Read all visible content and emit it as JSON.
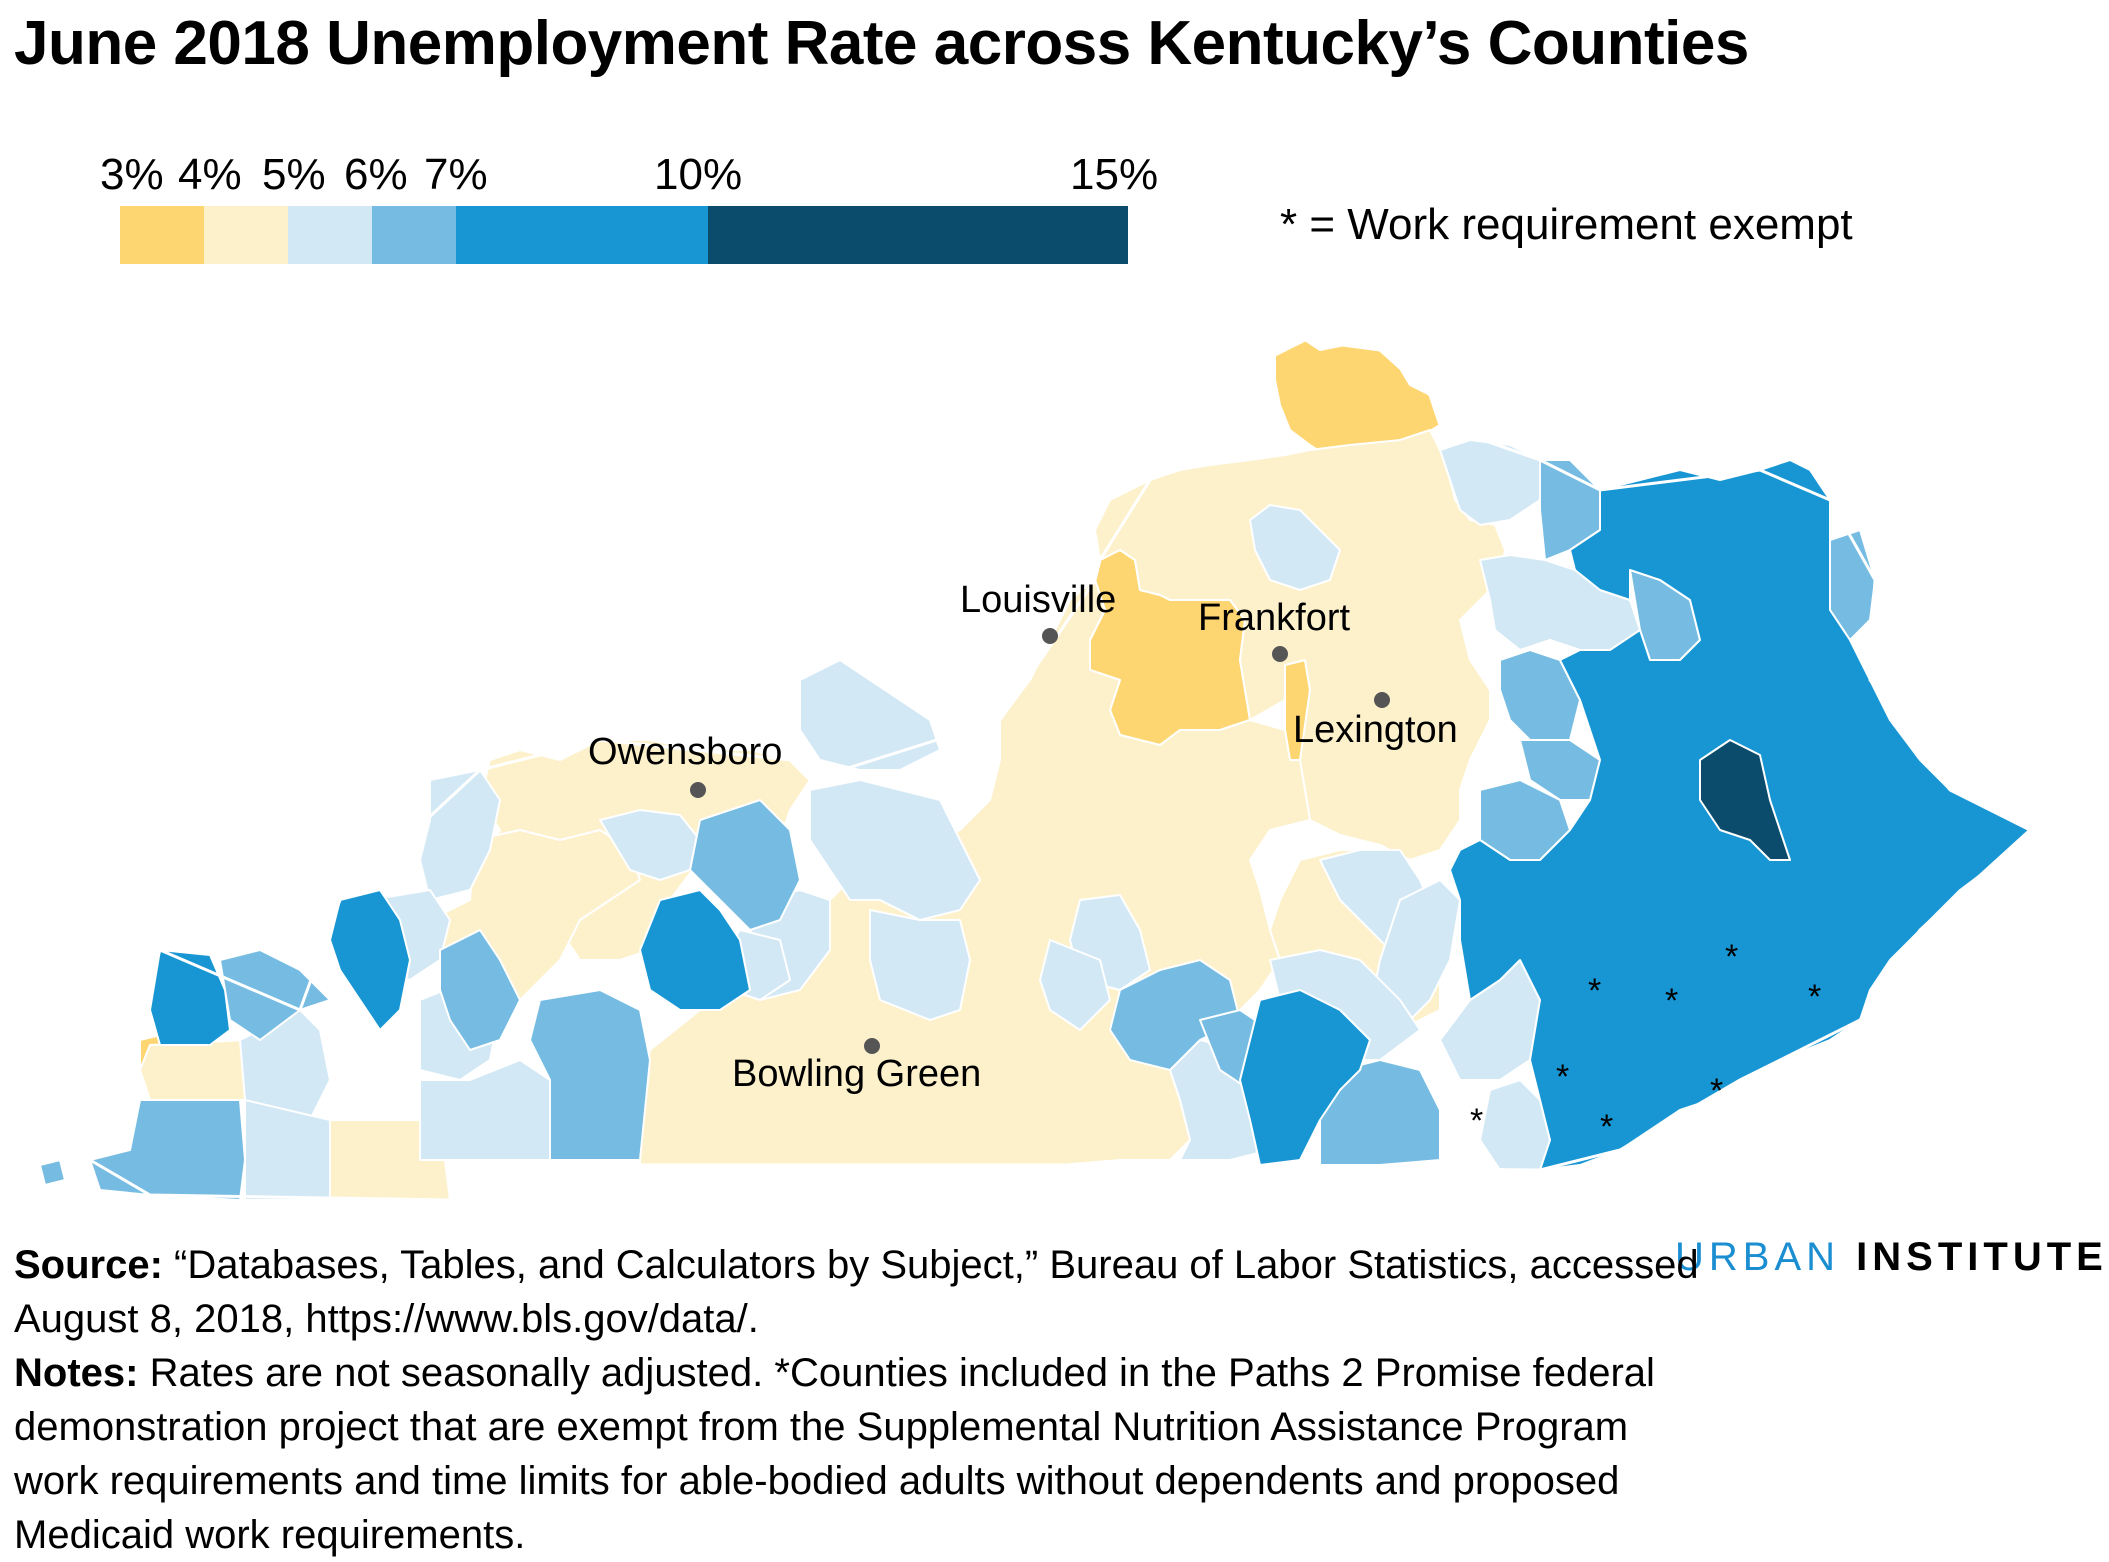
{
  "title": "June 2018 Unemployment Rate across Kentucky’s Counties",
  "legend": {
    "ticks": [
      "3%",
      "4%",
      "5%",
      "6%",
      "7%",
      "10%",
      "15%"
    ],
    "bins": [
      {
        "from": 3,
        "to": 4,
        "color": "#fdd672"
      },
      {
        "from": 4,
        "to": 5,
        "color": "#fdf1cb"
      },
      {
        "from": 5,
        "to": 6,
        "color": "#d2e8f5"
      },
      {
        "from": 6,
        "to": 7,
        "color": "#76bce2"
      },
      {
        "from": 7,
        "to": 10,
        "color": "#1896d3"
      },
      {
        "from": 10,
        "to": 15,
        "color": "#0b4b6c"
      }
    ]
  },
  "exempt_note": "* = Work requirement exempt",
  "cities": [
    {
      "name": "Louisville"
    },
    {
      "name": "Frankfort"
    },
    {
      "name": "Lexington"
    },
    {
      "name": "Owensboro"
    },
    {
      "name": "Bowling Green"
    }
  ],
  "exempt_marker": "*",
  "brand": {
    "urban": "URBAN",
    "institute": "INSTITUTE"
  },
  "source": {
    "label": "Source:",
    "text": " “Databases, Tables, and Calculators by Subject,” Bureau of Labor Statistics, accessed August 8, 2018, https://www.bls.gov/data/."
  },
  "notes": {
    "label": "Notes:",
    "text": " Rates are not seasonally adjusted. *Counties included in the Paths 2 Promise federal demonstration project that are exempt from the Supplemental Nutrition Assistance Program work requirements and time limits for able-bodied adults without dependents and proposed Medicaid work requirements."
  }
}
